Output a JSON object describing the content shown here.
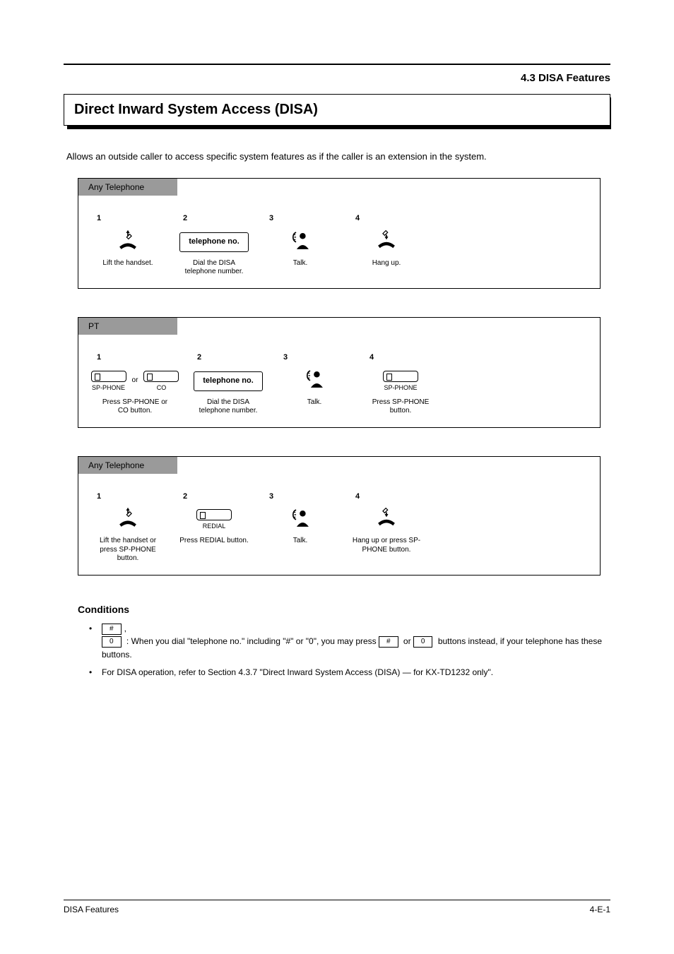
{
  "header": {
    "section": "4.3 DISA Features",
    "title": "Direct Inward System Access (DISA)"
  },
  "intro": "Allows an outside caller to access specific system features as if the caller is an extension in the system.",
  "procedures": [
    {
      "tab": "Any Telephone",
      "steps": [
        {
          "num": "1",
          "kind": "offhook",
          "caption": "Lift the handset."
        },
        {
          "num": "2",
          "kind": "dialbox",
          "text": "telephone no.",
          "caption": "Dial the DISA telephone number."
        },
        {
          "num": "3",
          "kind": "talk",
          "caption": "Talk."
        },
        {
          "num": "4",
          "kind": "onhook",
          "caption": "Hang up."
        }
      ]
    },
    {
      "tab": "PT",
      "steps": [
        {
          "num": "1",
          "kind": "pair",
          "key1": "SP-PHONE",
          "key2": "CO",
          "sep": "or",
          "caption": "Press SP-PHONE or CO button."
        },
        {
          "num": "2",
          "kind": "dialbox",
          "text": "telephone no.",
          "caption": "Dial the DISA telephone number."
        },
        {
          "num": "3",
          "kind": "talk",
          "caption": "Talk."
        },
        {
          "num": "4",
          "kind": "key",
          "key": "SP-PHONE",
          "caption": "Press SP-PHONE button."
        }
      ]
    },
    {
      "tab": "Any Telephone",
      "steps": [
        {
          "num": "1",
          "kind": "offhook",
          "caption": "Lift the handset or press SP-PHONE button."
        },
        {
          "num": "2",
          "kind": "key",
          "key": "REDIAL",
          "caption": "Press REDIAL button."
        },
        {
          "num": "3",
          "kind": "talk",
          "caption": "Talk."
        },
        {
          "num": "4",
          "kind": "onhook",
          "caption": "Hang up or press SP-PHONE button."
        }
      ]
    }
  ],
  "conditions": {
    "heading": "Conditions",
    "items": [
      {
        "prefix_keys": [
          "#",
          "0"
        ],
        "text_after_keys": " : When you dial \"telephone no.\" including \"#\" or \"0\", you may press",
        "line2_keys": [
          "#",
          "0"
        ],
        "line2_text": " buttons instead, if your telephone has these buttons."
      },
      {
        "text": "For DISA operation, refer to Section 4.3.7 \"Direct Inward System Access (DISA) — for KX-TD1232 only\"."
      }
    ]
  },
  "footer": {
    "left": "DISA Features",
    "right": "4-E-1"
  },
  "style": {
    "page_bg": "#ffffff",
    "text_color": "#000000",
    "tab_bg": "#9a9a9a",
    "rule_color": "#000000"
  }
}
